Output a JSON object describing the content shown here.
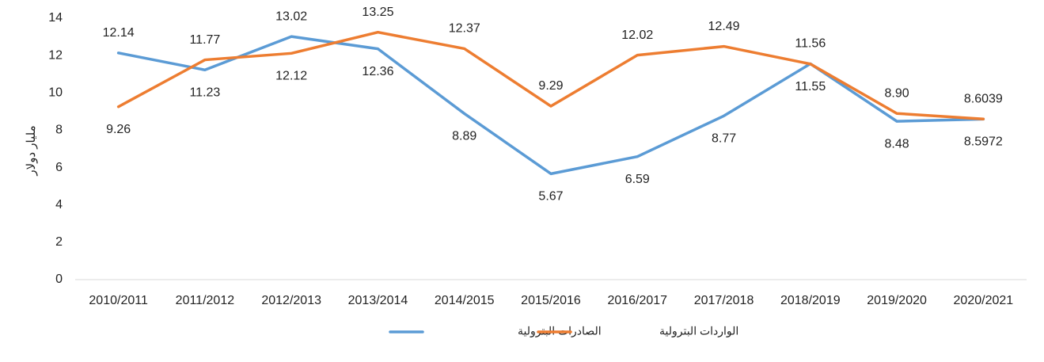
{
  "chart_data": {
    "type": "line",
    "title": "",
    "xlabel": "",
    "ylabel": "مليار دولار",
    "ylim": [
      0,
      14
    ],
    "yticks": [
      0,
      2,
      4,
      6,
      8,
      10,
      12,
      14
    ],
    "grid": false,
    "legend_position": "bottom",
    "categories": [
      "2010/2011",
      "2011/2012",
      "2012/2013",
      "2013/2014",
      "2014/2015",
      "2015/2016",
      "2016/2017",
      "2017/2018",
      "2018/2019",
      "2019/2020",
      "2020/2021"
    ],
    "series": [
      {
        "name": "الصادرات البترولية",
        "color": "#5B9BD5",
        "values": [
          12.14,
          11.23,
          13.02,
          12.36,
          8.89,
          5.67,
          6.59,
          8.77,
          11.56,
          8.48,
          8.5972
        ],
        "labels": [
          "12.14",
          "11.23",
          "13.02",
          "12.36",
          "8.89",
          "5.67",
          "6.59",
          "8.77",
          "11.56",
          "8.48",
          "8.5972"
        ]
      },
      {
        "name": "الواردات البترولية",
        "color": "#ED7D31",
        "values": [
          9.26,
          11.77,
          12.12,
          13.25,
          12.37,
          9.29,
          12.02,
          12.49,
          11.55,
          8.9,
          8.6039
        ],
        "labels": [
          "9.26",
          "11.77",
          "12.12",
          "13.25",
          "12.37",
          "9.29",
          "12.02",
          "12.49",
          "11.55",
          "8.90",
          "8.6039"
        ]
      }
    ]
  }
}
